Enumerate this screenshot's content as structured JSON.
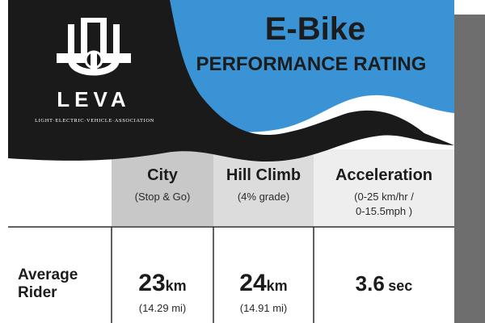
{
  "logo": {
    "name": "LEVA",
    "tagline": "LIGHT·ELECTRIC·VEHICLE·ASSOCIATION"
  },
  "title": {
    "main": "E-Bike",
    "sub": "PERFORMANCE RATING"
  },
  "columns": [
    {
      "head": "City",
      "note_lines": [
        "(Stop & Go)"
      ]
    },
    {
      "head": "Hill Climb",
      "note_lines": [
        "(4% grade)"
      ]
    },
    {
      "head": "Acceleration",
      "note_lines": [
        "(0-25 km/hr /",
        "0-15.5mph )"
      ]
    }
  ],
  "rows": [
    {
      "label_lines": [
        "Average",
        "Rider"
      ],
      "values": [
        {
          "number": "23",
          "unit": "km",
          "sub": "(14.29 mi)"
        },
        {
          "number": "24",
          "unit": "km",
          "sub": "(14.91 mi)"
        },
        {
          "number": "3.6",
          "unit": "sec",
          "sub": ""
        }
      ]
    }
  ],
  "colors": {
    "blue": "#3a93d4",
    "black": "#1a1a1a",
    "city_header": "#c8c8c8",
    "hill_header": "#dcdcdc",
    "accel_header": "#eeeeee",
    "shadow": "#6e6e6e"
  }
}
